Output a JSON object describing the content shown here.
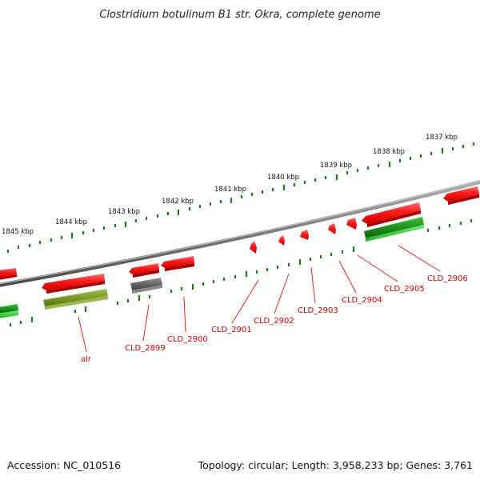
{
  "title": "Clostridium botulinum B1 str. Okra, complete genome",
  "footer": {
    "accession": "Accession: NC_010516",
    "summary": "Topology: circular; Length: 3,958,233 bp; Genes: 3,761"
  },
  "scale_labels": [
    "1837 kbp",
    "1838 kbp",
    "1839 kbp",
    "1840 kbp",
    "1841 kbp",
    "1842 kbp",
    "1843 kbp",
    "1844 kbp",
    "1845 kbp"
  ],
  "gene_labels": [
    "alr",
    "CLD_2899",
    "CLD_2900",
    "CLD_2901",
    "CLD_2902",
    "CLD_2903",
    "CLD_2904",
    "CLD_2905",
    "CLD_2906"
  ],
  "colors": {
    "forward_gene": "#ff2020",
    "reverse_gene_green": "#1f9a1f",
    "reverse_gene_olive": "#7a9a2a",
    "reverse_gene_gray": "#666666",
    "backbone": "#888888",
    "ticks": "#1a7a1a",
    "label_red": "#cc0000"
  }
}
